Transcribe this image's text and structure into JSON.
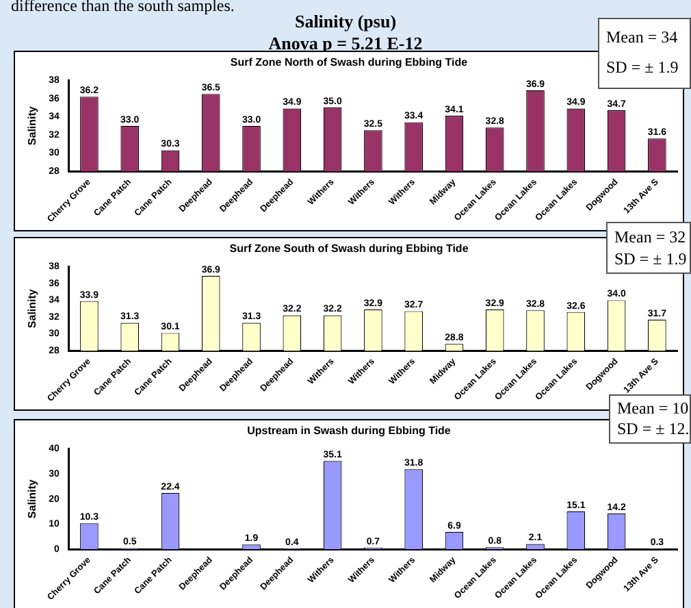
{
  "chart_data": [
    {
      "type": "other",
      "title": "Salinity (psu)",
      "subtitle": "Anova p = 5.21 E-12",
      "annotations": [
        "difference than the south samples."
      ]
    },
    {
      "type": "bar",
      "title": "Surf Zone North of Swash during Ebbing Tide",
      "ylabel": "Salinity",
      "color": "#993366",
      "categories": [
        "Cherry Grove",
        "Cane Patch",
        "Cane Patch",
        "Deephead",
        "Deephead",
        "Deephead",
        "Withers",
        "Withers",
        "Withers",
        "Midway",
        "Ocean Lakes",
        "Ocean Lakes",
        "Ocean Lakes",
        "Dogwood",
        "13th Ave S"
      ],
      "values": [
        36.2,
        33.0,
        30.3,
        36.5,
        33.0,
        34.9,
        35.0,
        32.5,
        33.4,
        34.1,
        32.8,
        36.9,
        34.9,
        34.7,
        31.6
      ],
      "value_labels": [
        "36.2",
        "33.0",
        "30.3",
        "36.5",
        "33.0",
        "34.9",
        "35.0",
        "32.5",
        "33.4",
        "34.1",
        "32.8",
        "36.9",
        "34.9",
        "34.7",
        "31.6"
      ],
      "ylim": [
        28,
        38
      ],
      "yticks": [
        28,
        30,
        32,
        34,
        36,
        38
      ],
      "annotations": [
        "Mean = 34",
        "SD = ± 1.9"
      ]
    },
    {
      "type": "bar",
      "title": "Surf Zone South of Swash during Ebbing Tide",
      "ylabel": "Salinity",
      "color": "#ffffcc",
      "categories": [
        "Cherry Grove",
        "Cane Patch",
        "Cane Patch",
        "Deephead",
        "Deephead",
        "Deephead",
        "Withers",
        "Withers",
        "Withers",
        "Midway",
        "Ocean Lakes",
        "Ocean Lakes",
        "Ocean Lakes",
        "Dogwood",
        "13th Ave S"
      ],
      "values": [
        33.9,
        31.3,
        30.1,
        36.9,
        31.3,
        32.2,
        32.2,
        32.9,
        32.7,
        28.8,
        32.9,
        32.8,
        32.6,
        34.0,
        31.7
      ],
      "value_labels": [
        "33.9",
        "31.3",
        "30.1",
        "36.9",
        "31.3",
        "32.2",
        "32.2",
        "32.9",
        "32.7",
        "28.8",
        "32.9",
        "32.8",
        "32.6",
        "34.0",
        "31.7"
      ],
      "ylim": [
        28,
        38
      ],
      "yticks": [
        28,
        30,
        32,
        34,
        36,
        38
      ],
      "annotations": [
        "Mean = 32",
        "SD = ± 1.9"
      ]
    },
    {
      "type": "bar",
      "title": "Upstream in Swash during Ebbing Tide",
      "ylabel": "Salinity",
      "color": "#9999ff",
      "categories": [
        "Cherry Grove",
        "Cane Patch",
        "Cane Patch",
        "Deephead",
        "Deephead",
        "Deephead",
        "Withers",
        "Withers",
        "Withers",
        "Midway",
        "Ocean Lakes",
        "Ocean Lakes",
        "Ocean Lakes",
        "Dogwood",
        "13th Ave S"
      ],
      "values": [
        10.3,
        0.5,
        22.4,
        null,
        1.9,
        0.4,
        35.1,
        0.7,
        31.8,
        6.9,
        0.8,
        2.1,
        15.1,
        14.2,
        0.3
      ],
      "value_labels": [
        "10.3",
        "0.5",
        "22.4",
        null,
        "1.9",
        "0.4",
        "35.1",
        "0.7",
        "31.8",
        "6.9",
        "0.8",
        "2.1",
        "15.1",
        "14.2",
        "0.3"
      ],
      "ylim": [
        0,
        40
      ],
      "yticks": [
        0,
        10,
        20,
        30,
        40
      ],
      "annotations": [
        "Mean = 10.",
        "SD = ± 12."
      ]
    }
  ]
}
